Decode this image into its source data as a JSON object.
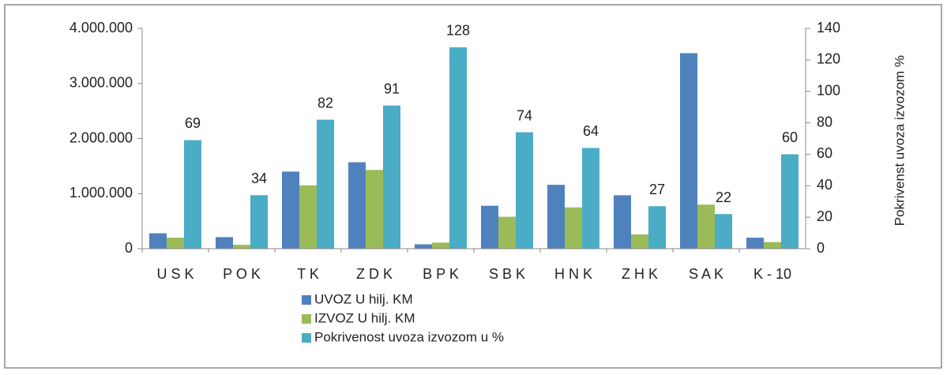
{
  "chart_data": {
    "type": "bar",
    "categories": [
      "U S K",
      "P O K",
      "T K",
      "Z D K",
      "B P K",
      "S B K",
      "H N K",
      "Z H K",
      "S A K",
      "K - 10"
    ],
    "series": [
      {
        "name": "UVOZ U hilj. KM",
        "color": "#4f81bd",
        "values": [
          280000,
          210000,
          1400000,
          1570000,
          80000,
          780000,
          1160000,
          970000,
          3550000,
          200000
        ]
      },
      {
        "name": "IZVOZ  U hilj. KM",
        "color": "#9bbb59",
        "values": [
          200000,
          70000,
          1150000,
          1430000,
          110000,
          580000,
          750000,
          260000,
          800000,
          120000
        ]
      },
      {
        "name": "Pokrivenost uvoza izvozom u %",
        "color": "#4bacc6",
        "axis": "y2",
        "values": [
          69,
          34,
          82,
          91,
          128,
          74,
          64,
          27,
          22,
          60
        ]
      }
    ],
    "ylim": [
      0,
      4000000
    ],
    "yticks": [
      0,
      {
        "value": 1000000,
        "label": "1.000.000"
      },
      {
        "value": 2000000,
        "label": "2.000.000"
      },
      {
        "value": 3000000,
        "label": "3.000.000"
      },
      {
        "value": 4000000,
        "label": "4.000.000"
      }
    ],
    "y2lim": [
      0,
      140
    ],
    "y2ticks": [
      0,
      20,
      40,
      60,
      80,
      100,
      120,
      140
    ],
    "y2label": "Pokrivenst uvoza izvozom %"
  }
}
